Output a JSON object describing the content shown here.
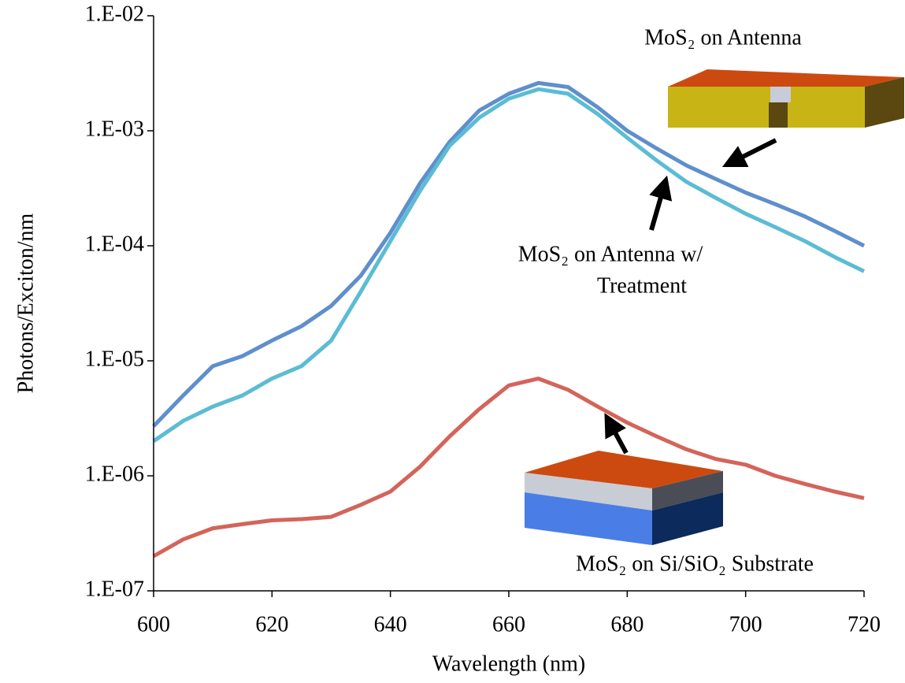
{
  "chart_data": {
    "type": "line",
    "xlabel": "Wavelength (nm)",
    "ylabel": "Photons/Exciton/nm",
    "yscale": "log",
    "x": [
      600,
      605,
      610,
      615,
      620,
      625,
      630,
      635,
      640,
      645,
      650,
      655,
      660,
      665,
      670,
      675,
      680,
      685,
      690,
      695,
      700,
      705,
      710,
      715,
      720
    ],
    "series": [
      {
        "name": "MoS₂ on Antenna",
        "color": "#5f8fcc",
        "values": [
          2.7e-06,
          5e-06,
          9e-06,
          1.1e-05,
          1.5e-05,
          2e-05,
          3e-05,
          5.5e-05,
          0.00013,
          0.00035,
          0.0008,
          0.0015,
          0.0021,
          0.0026,
          0.0024,
          0.0016,
          0.001,
          0.0007,
          0.0005,
          0.00038,
          0.00029,
          0.00023,
          0.00018,
          0.000135,
          0.0001
        ]
      },
      {
        "name": "MoS₂ on Antenna w/ Treatment",
        "color": "#5bbcd4",
        "values": [
          2e-06,
          3e-06,
          4e-06,
          5e-06,
          7e-06,
          9e-06,
          1.5e-05,
          4e-05,
          0.00011,
          0.0003,
          0.00074,
          0.0013,
          0.0019,
          0.0023,
          0.0021,
          0.0014,
          0.00087,
          0.00055,
          0.00036,
          0.00026,
          0.00019,
          0.000145,
          0.00011,
          8e-05,
          6e-05
        ]
      },
      {
        "name": "MoS₂ on Si/SiO₂ Substrate",
        "color": "#d4645a",
        "values": [
          2e-07,
          2.8e-07,
          3.5e-07,
          3.8e-07,
          4.1e-07,
          4.2e-07,
          4.4e-07,
          5.6e-07,
          7.3e-07,
          1.2e-06,
          2.2e-06,
          3.8e-06,
          6.1e-06,
          7e-06,
          5.6e-06,
          4e-06,
          2.9e-06,
          2.2e-06,
          1.7e-06,
          1.4e-06,
          1.25e-06,
          1e-06,
          8.5e-07,
          7.3e-07,
          6.4e-07
        ]
      }
    ],
    "annotations": [
      "MoS₂ on Antenna",
      "MoS₂ on Antenna w/",
      "Treatment",
      "MoS₂ on Si/SiO₂ Substrate"
    ],
    "xlim": [
      600,
      720
    ],
    "xticks": [
      600,
      620,
      640,
      660,
      680,
      700,
      720
    ],
    "ylim": [
      1e-07,
      0.01
    ],
    "yticks": [
      {
        "value": 1e-07,
        "label": "1.E-07"
      },
      {
        "value": 1e-06,
        "label": "1.E-06"
      },
      {
        "value": 1e-05,
        "label": "1.E-05"
      },
      {
        "value": 0.0001,
        "label": "1.E-04"
      },
      {
        "value": 0.001,
        "label": "1.E-03"
      },
      {
        "value": 0.01,
        "label": "1.E-02"
      }
    ]
  }
}
